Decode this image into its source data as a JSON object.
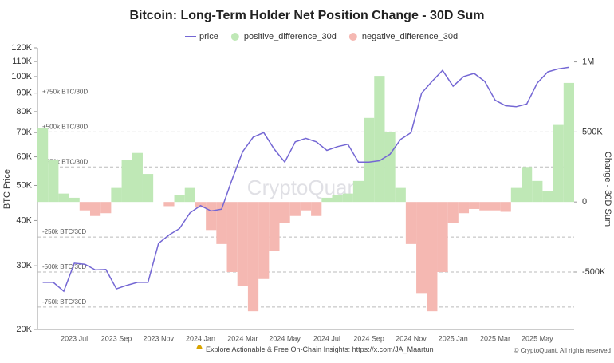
{
  "chart_data": {
    "type": "combo",
    "title": "Bitcoin: Long-Term Holder Net Position Change - 30D Sum",
    "y_label": "BTC Price",
    "y2_label": "Change - 30D Sum",
    "watermark": "CryptoQuant",
    "categories": [
      null,
      null,
      null,
      "2023 Jul",
      null,
      null,
      null,
      "2023 Sep",
      null,
      null,
      null,
      "2023 Nov",
      null,
      null,
      null,
      "2024 Jan",
      null,
      null,
      null,
      "2024 Mar",
      null,
      null,
      null,
      "2024 May",
      null,
      null,
      null,
      "2024 Jul",
      null,
      null,
      null,
      "2024 Sep",
      null,
      null,
      null,
      "2024 Nov",
      null,
      null,
      null,
      "2025 Jan",
      null,
      null,
      null,
      "2025 Mar",
      null,
      null,
      null,
      "2025 May",
      null,
      null,
      null
    ],
    "log_y": true,
    "ylim": [
      20000,
      120000
    ],
    "yticks": [
      {
        "value": 20000,
        "label": "20K"
      },
      {
        "value": 30000,
        "label": "30K"
      },
      {
        "value": 40000,
        "label": "40K"
      },
      {
        "value": 50000,
        "label": "50K"
      },
      {
        "value": 60000,
        "label": "60K"
      },
      {
        "value": 70000,
        "label": "70K"
      },
      {
        "value": 80000,
        "label": "80K"
      },
      {
        "value": 90000,
        "label": "90K"
      },
      {
        "value": 100000,
        "label": "100K"
      },
      {
        "value": 110000,
        "label": "110K"
      },
      {
        "value": 120000,
        "label": "120K"
      }
    ],
    "y2lim": [
      -910000,
      1100000
    ],
    "y2ticks": [
      {
        "value": 1000000,
        "label": "1M"
      },
      {
        "value": 500000,
        "label": "500K"
      },
      0,
      {
        "value": -500000,
        "label": "-500K"
      }
    ],
    "reference_lines": [
      {
        "value": 750000,
        "label": "+750k BTC/30D"
      },
      {
        "value": 500000,
        "label": "+500k BTC/30D"
      },
      {
        "value": 250000,
        "label": "+250k BTC/30D"
      },
      {
        "value": -250000,
        "label": "-250k BTC/30D"
      },
      {
        "value": -500000,
        "label": "-500k BTC/30D"
      },
      {
        "value": -750000,
        "label": "-750k BTC/30D"
      }
    ],
    "series": [
      {
        "name": "price",
        "kind": "line",
        "color": "#7467d4",
        "values": [
          27000,
          27000,
          25500,
          30500,
          30300,
          29200,
          29300,
          25900,
          26500,
          27000,
          27000,
          34600,
          36500,
          38000,
          42000,
          44000,
          42500,
          43000,
          52000,
          62000,
          68000,
          70000,
          63000,
          58000,
          66000,
          67500,
          66000,
          62500,
          64000,
          65000,
          58000,
          58000,
          58500,
          61000,
          67000,
          70000,
          90000,
          97000,
          104000,
          94000,
          100000,
          102000,
          97000,
          86000,
          83000,
          82500,
          84000,
          96000,
          103000,
          105000,
          106000
        ]
      },
      {
        "name": "positive_difference_30d",
        "kind": "bar",
        "axis": "y2",
        "color": "#bfe8b6",
        "values": [
          530000,
          300000,
          60000,
          30000,
          0,
          0,
          0,
          100000,
          300000,
          350000,
          200000,
          0,
          0,
          50000,
          100000,
          0,
          0,
          0,
          0,
          0,
          0,
          0,
          0,
          0,
          0,
          0,
          0,
          30000,
          50000,
          60000,
          150000,
          600000,
          900000,
          500000,
          100000,
          0,
          0,
          0,
          0,
          0,
          0,
          0,
          0,
          0,
          0,
          100000,
          250000,
          150000,
          80000,
          550000,
          850000
        ]
      },
      {
        "name": "negative_difference_30d",
        "kind": "bar",
        "axis": "y2",
        "color": "#f5b8b2",
        "values": [
          0,
          0,
          0,
          0,
          -60000,
          -100000,
          -80000,
          0,
          0,
          0,
          0,
          0,
          -30000,
          0,
          0,
          -40000,
          -200000,
          -300000,
          -500000,
          -600000,
          -780000,
          -550000,
          -350000,
          -150000,
          -100000,
          -60000,
          -100000,
          0,
          0,
          0,
          0,
          0,
          0,
          0,
          0,
          -300000,
          -650000,
          -780000,
          -500000,
          -150000,
          -80000,
          -50000,
          -60000,
          -60000,
          -70000,
          0,
          0,
          0,
          0,
          0,
          0
        ]
      }
    ]
  },
  "footer": {
    "text": "Explore Actionable & Free On-Chain Insights: ",
    "link": "https://x.com/JA_Maartun",
    "copyright": "© CryptoQuant. All rights reserved"
  }
}
